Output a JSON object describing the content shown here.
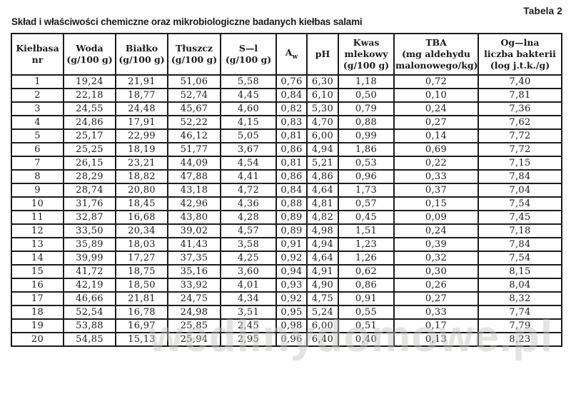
{
  "page": {
    "corner_label": "Tabela 2",
    "title": "Skład i właściwości chemiczne oraz mikrobiologiczne badanych kiełbas salami",
    "watermark": "wedlinydomowe.pl"
  },
  "table": {
    "columns": [
      {
        "label": "Kiełbasa\nnr"
      },
      {
        "label": "Woda\n(g/100 g)"
      },
      {
        "label": "Białko\n(g/100 g)"
      },
      {
        "label": "Tłuszcz\n(g/100 g)"
      },
      {
        "label": "S—l\n(g/100 g)"
      },
      {
        "label_main": "A",
        "label_sub": "w"
      },
      {
        "label": "pH"
      },
      {
        "label": "Kwas\nmlekowy\n(g/100 g)"
      },
      {
        "label": "TBA\n(mg aldehydu\nmalonowego/kg)"
      },
      {
        "label": "Og—lna\nliczba bakterii\n(log j.t.k./g)"
      }
    ],
    "rows": [
      [
        "1",
        "19,24",
        "21,91",
        "51,06",
        "5,58",
        "0,76",
        "6,30",
        "1,18",
        "0,72",
        "7,40"
      ],
      [
        "2",
        "22,18",
        "18,77",
        "52,74",
        "4,45",
        "0,84",
        "6,10",
        "0,50",
        "0,10",
        "7,81"
      ],
      [
        "3",
        "24,55",
        "24,48",
        "45,67",
        "4,60",
        "0,82",
        "5,30",
        "0,79",
        "0,24",
        "7,36"
      ],
      [
        "4",
        "24,86",
        "17,91",
        "52,22",
        "4,15",
        "0,83",
        "4,70",
        "0,88",
        "0,27",
        "7,62"
      ],
      [
        "5",
        "25,17",
        "22,99",
        "46,12",
        "5,05",
        "0,81",
        "6,00",
        "0,99",
        "0,14",
        "7,72"
      ],
      [
        "6",
        "25,25",
        "18,19",
        "51,77",
        "3,67",
        "0,86",
        "4,94",
        "1,86",
        "0,69",
        "7,72"
      ],
      [
        "7",
        "26,15",
        "23,21",
        "44,09",
        "4,54",
        "0,81",
        "5,21",
        "0,53",
        "0,22",
        "7,15"
      ],
      [
        "8",
        "28,29",
        "18,82",
        "47,88",
        "4,41",
        "0,86",
        "4,86",
        "0,96",
        "0,33",
        "7,84"
      ],
      [
        "9",
        "28,74",
        "20,80",
        "43,18",
        "4,72",
        "0,84",
        "4,64",
        "1,73",
        "0,37",
        "7,04"
      ],
      [
        "10",
        "31,76",
        "18,45",
        "42,96",
        "4,36",
        "0,88",
        "4,81",
        "0,57",
        "0,15",
        "7,54"
      ],
      [
        "11",
        "32,87",
        "16,68",
        "43,80",
        "4,28",
        "0,89",
        "4,82",
        "0,45",
        "0,09",
        "7,45"
      ],
      [
        "12",
        "33,50",
        "20,34",
        "39,02",
        "4,57",
        "0,89",
        "4,98",
        "1,51",
        "0,24",
        "7,18"
      ],
      [
        "13",
        "35,89",
        "18,03",
        "41,43",
        "3,58",
        "0,91",
        "4,94",
        "1,23",
        "0,39",
        "7,84"
      ],
      [
        "14",
        "39,99",
        "17,27",
        "37,35",
        "4,25",
        "0,92",
        "4,64",
        "1,26",
        "0,32",
        "7,54"
      ],
      [
        "15",
        "41,72",
        "18,75",
        "35,16",
        "3,60",
        "0,94",
        "4,91",
        "0,62",
        "0,30",
        "8,15"
      ],
      [
        "16",
        "42,19",
        "18,50",
        "33,92",
        "4,01",
        "0,93",
        "4,90",
        "0,86",
        "0,26",
        "8,04"
      ],
      [
        "17",
        "46,66",
        "21,81",
        "24,75",
        "4,34",
        "0,92",
        "4,75",
        "0,91",
        "0,27",
        "8,32"
      ],
      [
        "18",
        "52,54",
        "16,78",
        "24,98",
        "3,51",
        "0,95",
        "5,24",
        "0,55",
        "0,33",
        "7,74"
      ],
      [
        "19",
        "53,88",
        "16,97",
        "25,85",
        "2,45",
        "0,98",
        "6,00",
        "0,51",
        "0,17",
        "7,79"
      ],
      [
        "20",
        "54,85",
        "15,13",
        "25,94",
        "2,95",
        "0,96",
        "6,40",
        "0,40",
        "0,13",
        "8,23"
      ]
    ]
  }
}
